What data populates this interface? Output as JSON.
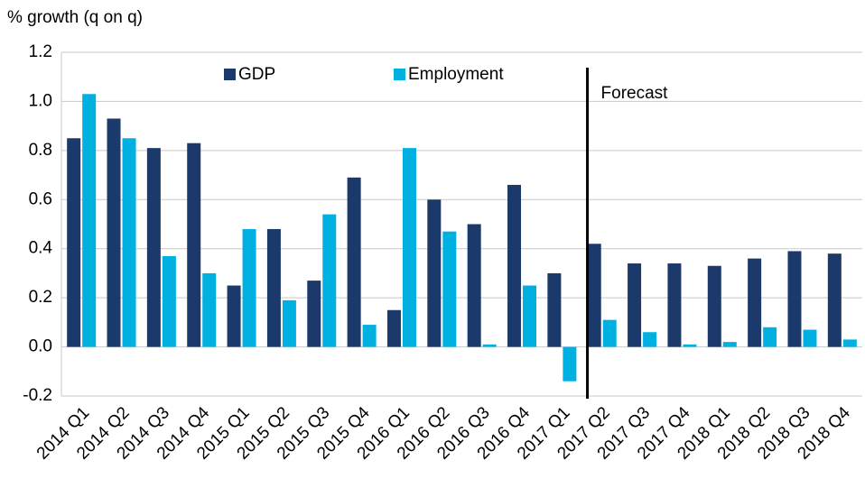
{
  "chart_data": {
    "type": "bar",
    "y_axis_label": "% growth (q on q)",
    "categories": [
      "2014 Q1",
      "2014 Q2",
      "2014 Q3",
      "2014 Q4",
      "2015 Q1",
      "2015 Q2",
      "2015 Q3",
      "2015 Q4",
      "2016 Q1",
      "2016 Q2",
      "2016 Q3",
      "2016 Q4",
      "2017 Q1",
      "2017 Q2",
      "2017 Q3",
      "2017 Q4",
      "2018 Q1",
      "2018 Q2",
      "2018 Q3",
      "2018 Q4"
    ],
    "series": [
      {
        "name": "GDP",
        "color": "#1b3a6b",
        "values": [
          0.85,
          0.93,
          0.81,
          0.83,
          0.25,
          0.48,
          0.27,
          0.69,
          0.15,
          0.6,
          0.5,
          0.66,
          0.3,
          0.42,
          0.34,
          0.34,
          0.33,
          0.36,
          0.39,
          0.38
        ]
      },
      {
        "name": "Employment",
        "color": "#00b0e0",
        "values": [
          1.03,
          0.85,
          0.37,
          0.3,
          0.48,
          0.19,
          0.54,
          0.09,
          0.81,
          0.47,
          0.01,
          0.25,
          -0.14,
          0.11,
          0.06,
          0.01,
          0.02,
          0.08,
          0.07,
          0.03
        ]
      }
    ],
    "annotation": "Forecast",
    "forecast_start": "2017 Q2",
    "ylim": [
      -0.2,
      1.2
    ],
    "yticks": [
      -0.2,
      0.2,
      {
        "value": 0,
        "label": "0.0"
      },
      0.4,
      0.6,
      0.8,
      {
        "value": 1,
        "label": "1.0"
      },
      1.2
    ],
    "grid": true,
    "legend": "top"
  }
}
